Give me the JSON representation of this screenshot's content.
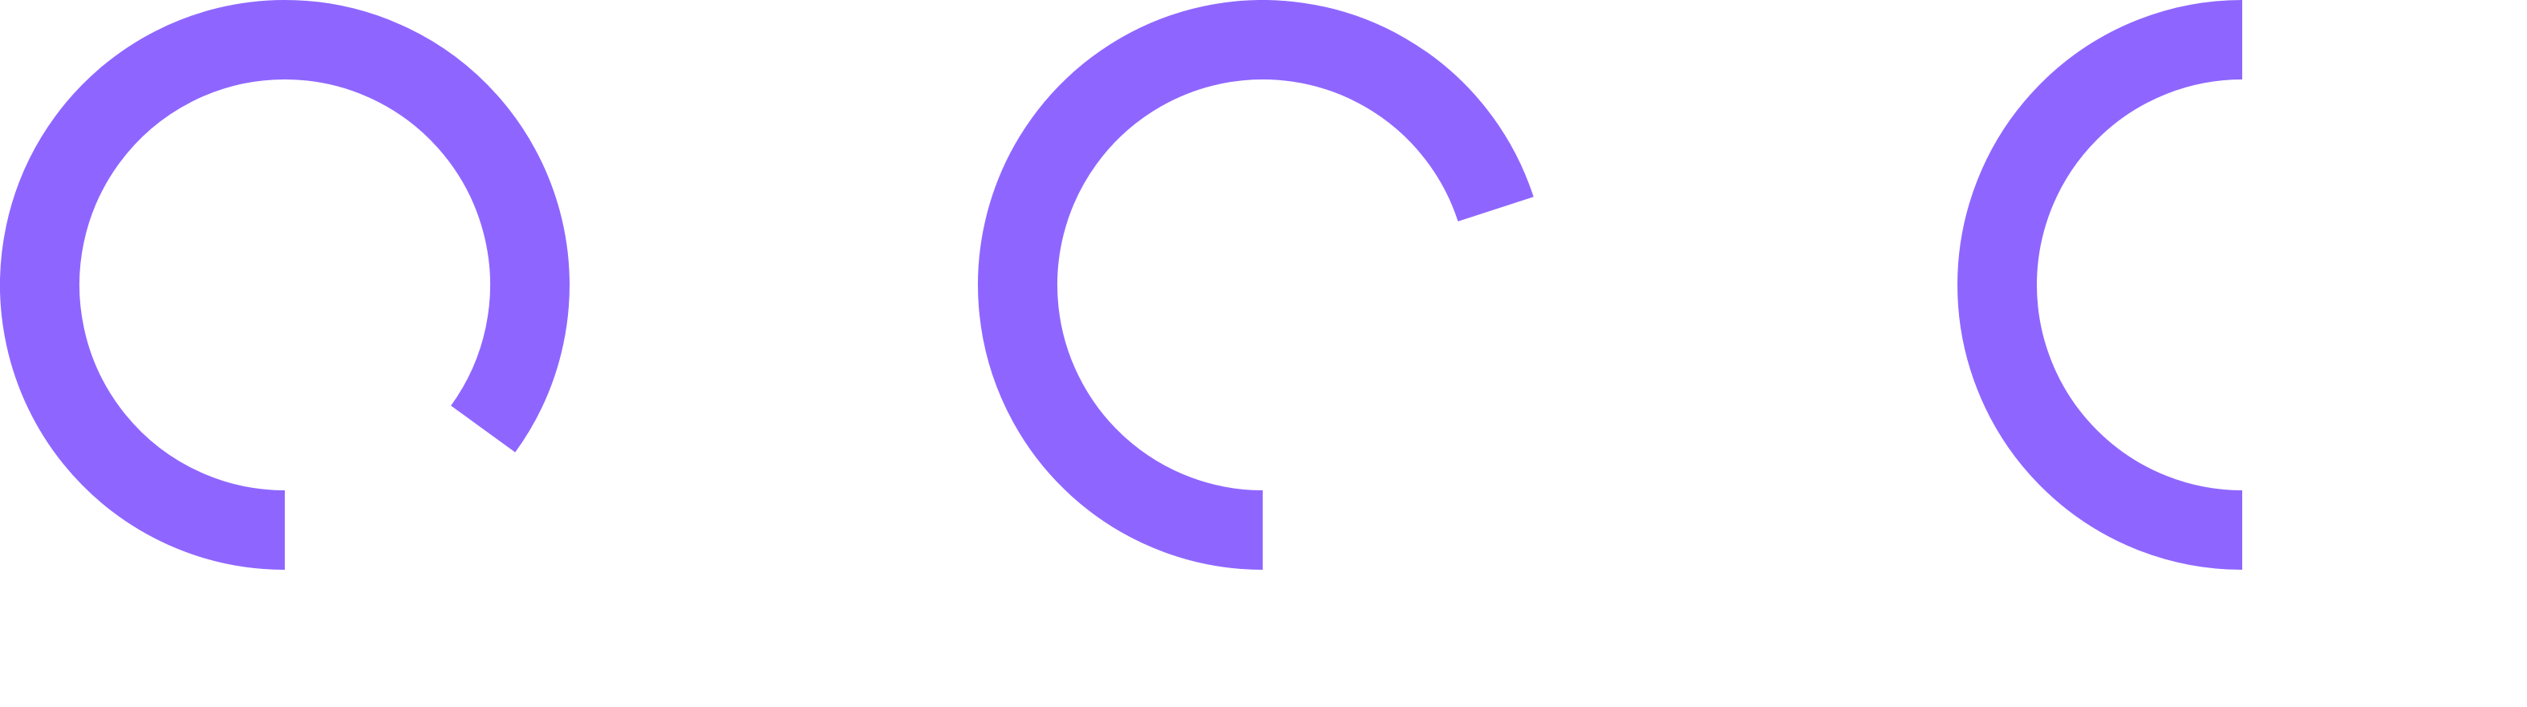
{
  "theme": {
    "background": "#ffffff",
    "ring_color": "#8e66ff"
  },
  "progress_rings": [
    {
      "progress": 0.85
    },
    {
      "progress": 0.7
    },
    {
      "progress": 0.5
    }
  ]
}
